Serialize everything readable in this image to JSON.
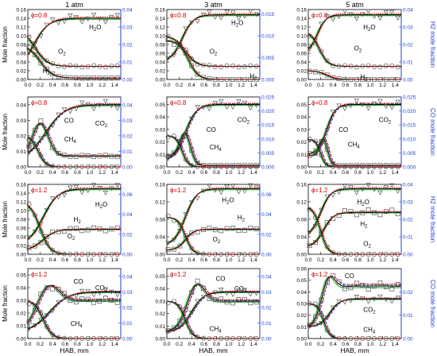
{
  "figure": {
    "columns": [
      "1 atm",
      "3 atm",
      "5 atm"
    ],
    "xlabel": "HAB, mm",
    "x_ticks": [
      "0.0",
      "0.2",
      "0.4",
      "0.6",
      "0.8",
      "1.0",
      "1.2",
      "1.4"
    ],
    "left_ylabel": "Mole fraction",
    "right_ylabels": [
      "H2 mole fraction",
      "CO mole fraction",
      "H2 mole fraction",
      "CO mole fraction"
    ],
    "colors": {
      "black_line": "#000000",
      "red_dotted": "#e00000",
      "green_line": "#1aa31a",
      "blue_dashed": "#1f3fd8",
      "right_axis": "#1f3fd8",
      "phi_label": "#d00000"
    }
  },
  "chart_data": [
    {
      "type": "line",
      "row": 1,
      "col": 1,
      "phi": "ϕ=0.8",
      "xlim": [
        0,
        1.5
      ],
      "ylim": [
        0,
        0.16
      ],
      "ylim_right": [
        0,
        0.04
      ],
      "yticks": [
        "0.00",
        "0.02",
        "0.04",
        "0.06",
        "0.08",
        "0.10",
        "0.12",
        "0.14",
        "0.16"
      ],
      "yticks_right": [
        "0.00",
        "0.01",
        "0.02",
        "0.03",
        "0.04"
      ],
      "series": [
        {
          "name": "H2O",
          "axis": "left",
          "shape": "rise",
          "final": 0.14,
          "x0": 0.1,
          "w": 0.12,
          "init": 0.02,
          "marker": "triangle",
          "label_x": 0.95,
          "label_y": 0.12,
          "label": "H2O"
        },
        {
          "name": "O2",
          "axis": "left",
          "shape": "decay",
          "init": 0.115,
          "final": 0.03,
          "x0": 0.12,
          "w": 0.1,
          "marker": "circle",
          "label_x": 0.45,
          "label_y": 0.065,
          "label": "O2"
        },
        {
          "name": "H2",
          "axis": "right",
          "shape": "decay",
          "init": 0.02,
          "final": 0.0008,
          "x0": 0.2,
          "w": 0.1,
          "marker": "square",
          "label_x": 0.2,
          "label_y": 0.02,
          "label": "H2"
        }
      ]
    },
    {
      "type": "line",
      "row": 1,
      "col": 2,
      "phi": "ϕ=0.8",
      "xlim": [
        0,
        1.5
      ],
      "ylim": [
        0,
        0.16
      ],
      "ylim_right": [
        0,
        0.016
      ],
      "yticks": [
        "0.00",
        "0.02",
        "0.04",
        "0.06",
        "0.08",
        "0.10",
        "0.12",
        "0.14",
        "0.16"
      ],
      "yticks_right": [
        "0.000",
        "0.005",
        "0.010",
        "0.015"
      ],
      "series": [
        {
          "name": "H2O",
          "axis": "left",
          "shape": "rise",
          "final": 0.148,
          "x0": 0.25,
          "w": 0.09,
          "init": 0.04,
          "marker": "triangle",
          "label_x": 1.0,
          "label_y": 0.13,
          "label": "H2O"
        },
        {
          "name": "O2",
          "axis": "left",
          "shape": "decay",
          "init": 0.1,
          "final": 0.03,
          "x0": 0.3,
          "w": 0.09,
          "marker": "circle",
          "label_x": 0.65,
          "label_y": 0.065,
          "label": "O2"
        },
        {
          "name": "H2",
          "axis": "right",
          "shape": "decay",
          "init": 0.009,
          "final": 0.0,
          "x0": 0.35,
          "w": 0.08,
          "marker": "square",
          "label_x": 1.3,
          "label_y": 0.008,
          "label": "H2"
        }
      ]
    },
    {
      "type": "line",
      "row": 1,
      "col": 3,
      "phi": "ϕ=0.8",
      "xlim": [
        0,
        1.5
      ],
      "ylim": [
        0,
        0.16
      ],
      "ylim_right": [
        0,
        0.04
      ],
      "yticks": [
        "0.00",
        "0.02",
        "0.04",
        "0.06",
        "0.08",
        "0.10",
        "0.12",
        "0.14",
        "0.16"
      ],
      "yticks_right": [
        "0.00",
        "0.01",
        "0.02",
        "0.03",
        "0.04"
      ],
      "series": [
        {
          "name": "H2O",
          "axis": "left",
          "shape": "rise",
          "final": 0.148,
          "x0": 0.15,
          "w": 0.07,
          "init": 0.06,
          "marker": "triangle",
          "label_x": 0.85,
          "label_y": 0.12,
          "label": "H2O"
        },
        {
          "name": "O2",
          "axis": "left",
          "shape": "decay",
          "init": 0.11,
          "final": 0.03,
          "x0": 0.18,
          "w": 0.07,
          "marker": "circle",
          "label_x": 0.7,
          "label_y": 0.072,
          "label": "O2"
        },
        {
          "name": "H2",
          "axis": "right",
          "shape": "decay",
          "init": 0.005,
          "final": 0.0,
          "x0": 0.3,
          "w": 0.08,
          "marker": "square",
          "label_x": 0.8,
          "label_y": 0.006,
          "label": "H2"
        }
      ]
    },
    {
      "type": "line",
      "row": 2,
      "col": 1,
      "phi": "ϕ=0.8",
      "xlim": [
        0,
        1.5
      ],
      "ylim": [
        0,
        0.045
      ],
      "ylim_right": [
        0,
        0.045
      ],
      "yticks": [
        "0.00",
        "0.01",
        "0.02",
        "0.03",
        "0.04"
      ],
      "yticks_right": [
        "0.00",
        "0.01",
        "0.02",
        "0.03",
        "0.04"
      ],
      "series": [
        {
          "name": "CO2",
          "axis": "left",
          "shape": "rise",
          "final": 0.04,
          "x0": 0.3,
          "w": 0.15,
          "init": 0.005,
          "marker": "triangle",
          "label_x": 1.05,
          "label_y": 0.028,
          "label": "CO2"
        },
        {
          "name": "CO",
          "axis": "right",
          "shape": "hump",
          "peak": 0.028,
          "xp": 0.2,
          "final": 0.007,
          "w": 0.18,
          "init": 0.006,
          "marker": "square",
          "label_x": 0.55,
          "label_y": 0.03,
          "label": "CO"
        },
        {
          "name": "CH4",
          "axis": "left",
          "shape": "decay",
          "init": 0.02,
          "final": 0.0,
          "x0": 0.17,
          "w": 0.06,
          "marker": "circle",
          "label_x": 0.55,
          "label_y": 0.018,
          "label": "CH4"
        }
      ]
    },
    {
      "type": "line",
      "row": 2,
      "col": 2,
      "phi": "ϕ=0.8",
      "xlim": [
        0,
        1.5
      ],
      "ylim": [
        0,
        0.056
      ],
      "ylim_right": [
        0,
        0.025
      ],
      "yticks": [
        "0.00",
        "0.01",
        "0.02",
        "0.03",
        "0.04",
        "0.05"
      ],
      "yticks_right": [
        "0.000",
        "0.005",
        "0.010",
        "0.015",
        "0.020",
        "0.025"
      ],
      "series": [
        {
          "name": "CO2",
          "axis": "left",
          "shape": "rise",
          "final": 0.05,
          "x0": 0.3,
          "w": 0.09,
          "init": 0.005,
          "marker": "triangle",
          "label_x": 1.1,
          "label_y": 0.038,
          "label": "CO2"
        },
        {
          "name": "CO",
          "axis": "right",
          "shape": "hump",
          "peak": 0.012,
          "xp": 0.3,
          "final": 0.0005,
          "w": 0.12,
          "init": 0.004,
          "marker": "square",
          "label_x": 0.6,
          "label_y": 0.03,
          "label": "CO"
        },
        {
          "name": "CH4",
          "axis": "left",
          "shape": "decay",
          "init": 0.025,
          "final": 0.0,
          "x0": 0.25,
          "w": 0.05,
          "marker": "circle",
          "label_x": 0.65,
          "label_y": 0.016,
          "label": "CH4"
        }
      ]
    },
    {
      "type": "line",
      "row": 2,
      "col": 3,
      "phi": "ϕ=0.8",
      "xlim": [
        0,
        1.5
      ],
      "ylim": [
        0,
        0.056
      ],
      "ylim_right": [
        0,
        0.025
      ],
      "yticks": [
        "0.00",
        "0.01",
        "0.02",
        "0.03",
        "0.04",
        "0.05"
      ],
      "yticks_right": [
        "0.000",
        "0.005",
        "0.010",
        "0.015",
        "0.020",
        "0.025"
      ],
      "series": [
        {
          "name": "CO2",
          "axis": "left",
          "shape": "rise",
          "final": 0.05,
          "x0": 0.3,
          "w": 0.07,
          "init": 0.01,
          "marker": "triangle",
          "label_x": 1.1,
          "label_y": 0.038,
          "label": "CO2"
        },
        {
          "name": "CO",
          "axis": "right",
          "shape": "hump",
          "peak": 0.01,
          "xp": 0.25,
          "final": 0.0005,
          "w": 0.09,
          "init": 0.004,
          "marker": "square",
          "label_x": 0.45,
          "label_y": 0.03,
          "label": "CO"
        },
        {
          "name": "CH4",
          "axis": "left",
          "shape": "decay",
          "init": 0.022,
          "final": 0.0,
          "x0": 0.2,
          "w": 0.04,
          "marker": "circle",
          "label_x": 0.6,
          "label_y": 0.018,
          "label": "CH4"
        }
      ]
    },
    {
      "type": "line",
      "row": 3,
      "col": 1,
      "phi": "ϕ=1.2",
      "xlim": [
        0,
        1.5
      ],
      "ylim": [
        0,
        0.16
      ],
      "ylim_right": [
        0,
        0.07
      ],
      "yticks": [
        "0.00",
        "0.02",
        "0.04",
        "0.06",
        "0.08",
        "0.10",
        "0.12",
        "0.14",
        "0.16"
      ],
      "yticks_right": [
        "0.00",
        "0.02",
        "0.04",
        "0.06"
      ],
      "series": [
        {
          "name": "H2O",
          "axis": "left",
          "shape": "rise",
          "final": 0.15,
          "x0": 0.25,
          "w": 0.12,
          "init": 0.02,
          "marker": "triangle",
          "label_x": 1.05,
          "label_y": 0.115,
          "label": "H2O"
        },
        {
          "name": "H2",
          "axis": "right",
          "shape": "rise",
          "final": 0.025,
          "x0": 0.25,
          "w": 0.1,
          "init": 0.004,
          "marker": "square",
          "label_x": 0.7,
          "label_y": 0.08,
          "label": "H2"
        },
        {
          "name": "O2",
          "axis": "left",
          "shape": "decay",
          "init": 0.12,
          "final": 0.0,
          "x0": 0.2,
          "w": 0.08,
          "marker": "circle",
          "label_x": 0.6,
          "label_y": 0.042,
          "label": "O2"
        }
      ]
    },
    {
      "type": "line",
      "row": 3,
      "col": 2,
      "phi": "ϕ=1.2",
      "xlim": [
        0,
        1.5
      ],
      "ylim": [
        0,
        0.16
      ],
      "ylim_right": [
        0,
        0.07
      ],
      "yticks": [
        "0.00",
        "0.04",
        "0.08",
        "0.12",
        "0.16"
      ],
      "yticks_right": [
        "0.00",
        "0.02",
        "0.04",
        "0.06"
      ],
      "series": [
        {
          "name": "H2O",
          "axis": "left",
          "shape": "rise",
          "final": 0.15,
          "x0": 0.3,
          "w": 0.09,
          "init": 0.02,
          "marker": "triangle",
          "label_x": 0.85,
          "label_y": 0.125,
          "label": "H2O"
        },
        {
          "name": "H2",
          "axis": "right",
          "shape": "rise",
          "final": 0.025,
          "x0": 0.3,
          "w": 0.07,
          "init": 0.004,
          "marker": "square",
          "label_x": 1.1,
          "label_y": 0.085,
          "label": "H2"
        },
        {
          "name": "O2",
          "axis": "left",
          "shape": "decay",
          "init": 0.085,
          "final": 0.0,
          "x0": 0.3,
          "w": 0.06,
          "marker": "circle",
          "label_x": 0.7,
          "label_y": 0.035,
          "label": "O2"
        }
      ]
    },
    {
      "type": "line",
      "row": 3,
      "col": 3,
      "phi": "ϕ=1.2",
      "xlim": [
        0,
        1.5
      ],
      "ylim": [
        0,
        0.16
      ],
      "ylim_right": [
        0,
        0.04
      ],
      "yticks": [
        "0.00",
        "0.04",
        "0.08",
        "0.12",
        "0.16"
      ],
      "yticks_right": [
        "0.00",
        "0.01",
        "0.02",
        "0.03",
        "0.04"
      ],
      "series": [
        {
          "name": "H2O",
          "axis": "left",
          "shape": "rise",
          "final": 0.15,
          "x0": 0.2,
          "w": 0.08,
          "init": 0.04,
          "marker": "triangle",
          "label_x": 0.75,
          "label_y": 0.12,
          "label": "H2O"
        },
        {
          "name": "H2",
          "axis": "right",
          "shape": "rise",
          "final": 0.024,
          "x0": 0.25,
          "w": 0.08,
          "init": 0.004,
          "marker": "square",
          "label_x": 0.8,
          "label_y": 0.07,
          "label": "H2"
        },
        {
          "name": "O2",
          "axis": "left",
          "shape": "decay",
          "init": 0.11,
          "final": 0.0,
          "x0": 0.2,
          "w": 0.06,
          "marker": "circle",
          "label_x": 0.85,
          "label_y": 0.025,
          "label": "O2"
        }
      ]
    },
    {
      "type": "line",
      "row": 4,
      "col": 1,
      "phi": "ϕ=1.2",
      "xlim": [
        0,
        1.5
      ],
      "ylim": [
        0,
        0.055
      ],
      "ylim_right": [
        0,
        0.045
      ],
      "yticks": [
        "0.00",
        "0.01",
        "0.02",
        "0.03",
        "0.04",
        "0.05"
      ],
      "yticks_right": [
        "0.00",
        "0.01",
        "0.02",
        "0.03",
        "0.04"
      ],
      "series": [
        {
          "name": "CO",
          "axis": "left",
          "shape": "hump",
          "peak": 0.04,
          "xp": 0.3,
          "final": 0.03,
          "w": 0.25,
          "init": 0.005,
          "marker": "square",
          "label_x": 0.7,
          "label_y": 0.045,
          "label": "CO"
        },
        {
          "name": "CO2",
          "axis": "right",
          "shape": "rise",
          "final": 0.03,
          "x0": 0.35,
          "w": 0.15,
          "init": 0.004,
          "marker": "triangle",
          "label_x": 1.05,
          "label_y": 0.04,
          "label": "CO2"
        },
        {
          "name": "CH4",
          "axis": "left",
          "shape": "decay",
          "init": 0.03,
          "final": 0.0,
          "x0": 0.25,
          "w": 0.07,
          "marker": "circle",
          "label_x": 0.65,
          "label_y": 0.012,
          "label": "CH4"
        }
      ]
    },
    {
      "type": "line",
      "row": 4,
      "col": 2,
      "phi": "ϕ=1.2",
      "xlim": [
        0,
        1.5
      ],
      "ylim": [
        0,
        0.056
      ],
      "ylim_right": [
        0,
        0.045
      ],
      "yticks": [
        "0.00",
        "0.01",
        "0.02",
        "0.03",
        "0.04",
        "0.05"
      ],
      "yticks_right": [
        "0.00",
        "0.01",
        "0.02",
        "0.03",
        "0.04"
      ],
      "series": [
        {
          "name": "CO",
          "axis": "left",
          "shape": "hump",
          "peak": 0.042,
          "xp": 0.45,
          "final": 0.03,
          "w": 0.2,
          "init": 0.006,
          "marker": "square",
          "label_x": 0.75,
          "label_y": 0.048,
          "label": "CO"
        },
        {
          "name": "CO2",
          "axis": "right",
          "shape": "rise",
          "final": 0.03,
          "x0": 0.4,
          "w": 0.1,
          "init": 0.004,
          "marker": "triangle",
          "label_x": 1.05,
          "label_y": 0.04,
          "label": "CO2"
        },
        {
          "name": "CH4",
          "axis": "left",
          "shape": "decay",
          "init": 0.03,
          "final": 0.0,
          "x0": 0.3,
          "w": 0.06,
          "marker": "circle",
          "label_x": 0.65,
          "label_y": 0.008,
          "label": "CH4"
        }
      ]
    },
    {
      "type": "line",
      "row": 4,
      "col": 3,
      "phi": "ϕ=1.2",
      "xlim": [
        0,
        1.5
      ],
      "ylim": [
        0,
        0.06
      ],
      "ylim_right": [
        0,
        0.03
      ],
      "yticks": [
        "0.00",
        "0.01",
        "0.02",
        "0.03",
        "0.04",
        "0.05",
        "0.06"
      ],
      "yticks_right": [
        "0.00",
        "0.01",
        "0.02"
      ],
      "series": [
        {
          "name": "CO",
          "axis": "left",
          "shape": "hump",
          "peak": 0.05,
          "xp": 0.3,
          "final": 0.045,
          "w": 0.15,
          "init": 0.01,
          "marker": "square",
          "label_x": 0.55,
          "label_y": 0.054,
          "label": "CO"
        },
        {
          "name": "CO2",
          "axis": "right",
          "shape": "rise",
          "final": 0.017,
          "x0": 0.35,
          "w": 0.08,
          "init": 0.005,
          "marker": "triangle",
          "label_x": 0.85,
          "label_y": 0.025,
          "label": "CO2"
        },
        {
          "name": "CH4",
          "axis": "left",
          "shape": "decay",
          "init": 0.03,
          "final": 0.0,
          "x0": 0.25,
          "w": 0.05,
          "marker": "circle",
          "label_x": 0.85,
          "label_y": 0.008,
          "label": "CH4"
        }
      ]
    }
  ]
}
